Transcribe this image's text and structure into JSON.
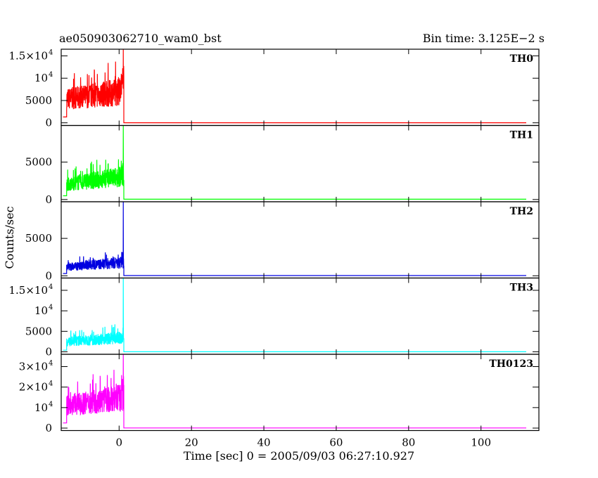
{
  "header": {
    "title": "ae050903062710_wam0_bst",
    "bin_time": "Bin time: 3.125E−2 s"
  },
  "chart_data": {
    "type": "line",
    "xlabel": "Time [sec] 0 = 2005/09/03 06:27:10.927",
    "ylabel": "Counts/sec",
    "xlim": [
      -16,
      116
    ],
    "x_ticks": [
      {
        "value": 0,
        "label": "0"
      },
      {
        "value": 20,
        "label": "20"
      },
      {
        "value": 40,
        "label": "40"
      },
      {
        "value": 60,
        "label": "60"
      },
      {
        "value": 80,
        "label": "80"
      },
      {
        "value": 100,
        "label": "100"
      }
    ],
    "panels": [
      {
        "name": "TH0",
        "color": "#ff0000",
        "ylim": [
          -600,
          16500
        ],
        "y_ticks": [
          {
            "value": 0,
            "base": "0",
            "exp": ""
          },
          {
            "value": 5000,
            "base": "5000",
            "exp": ""
          },
          {
            "value": 10000,
            "base": "10",
            "exp": "4"
          },
          {
            "value": 15000,
            "base": "1.5×10",
            "exp": "4"
          }
        ],
        "burst": {
          "pre_start": -15.5,
          "pre_level": 1300,
          "rise": -14.5,
          "end": 1.3,
          "base": 4000,
          "top": 8500,
          "spike": 16500,
          "final": 20
        }
      },
      {
        "name": "TH1",
        "color": "#00ff00",
        "ylim": [
          -300,
          9900
        ],
        "y_ticks": [
          {
            "value": 0,
            "base": "0",
            "exp": ""
          },
          {
            "value": 5000,
            "base": "5000",
            "exp": ""
          }
        ],
        "burst": {
          "pre_start": -15.5,
          "pre_level": 500,
          "rise": -14.5,
          "end": 1.3,
          "base": 700,
          "top": 3800,
          "spike": 9900,
          "final": 40
        }
      },
      {
        "name": "TH2",
        "color": "#0000e0",
        "ylim": [
          -300,
          9900
        ],
        "y_ticks": [
          {
            "value": 0,
            "base": "0",
            "exp": ""
          },
          {
            "value": 5000,
            "base": "5000",
            "exp": ""
          }
        ],
        "burst": {
          "pre_start": -15.5,
          "pre_level": 300,
          "rise": -14.5,
          "end": 1.3,
          "base": 400,
          "top": 2200,
          "spike": 9900,
          "final": 30
        }
      },
      {
        "name": "TH3",
        "color": "#00ffff",
        "ylim": [
          -600,
          18000
        ],
        "y_ticks": [
          {
            "value": 0,
            "base": "0",
            "exp": ""
          },
          {
            "value": 5000,
            "base": "5000",
            "exp": ""
          },
          {
            "value": 10000,
            "base": "10",
            "exp": "4"
          },
          {
            "value": 15000,
            "base": "1.5×10",
            "exp": "4"
          }
        ],
        "burst": {
          "pre_start": -15.5,
          "pre_level": 400,
          "rise": -14.5,
          "end": 1.3,
          "base": 1500,
          "top": 4200,
          "spike": 18000,
          "final": 10
        }
      },
      {
        "name": "TH0123",
        "color": "#ff00ff",
        "ylim": [
          -1200,
          36000
        ],
        "y_ticks": [
          {
            "value": 0,
            "base": "0",
            "exp": ""
          },
          {
            "value": 10000,
            "base": "10",
            "exp": "4"
          },
          {
            "value": 20000,
            "base": "2×10",
            "exp": "4"
          },
          {
            "value": 30000,
            "base": "3×10",
            "exp": "4"
          }
        ],
        "burst": {
          "pre_start": -15.5,
          "pre_level": 2500,
          "rise": -14.5,
          "end": 1.3,
          "base": 7500,
          "top": 18000,
          "spike": 36000,
          "final": 60
        }
      }
    ],
    "data_end": 112.5,
    "grid": false,
    "legend": "none"
  }
}
